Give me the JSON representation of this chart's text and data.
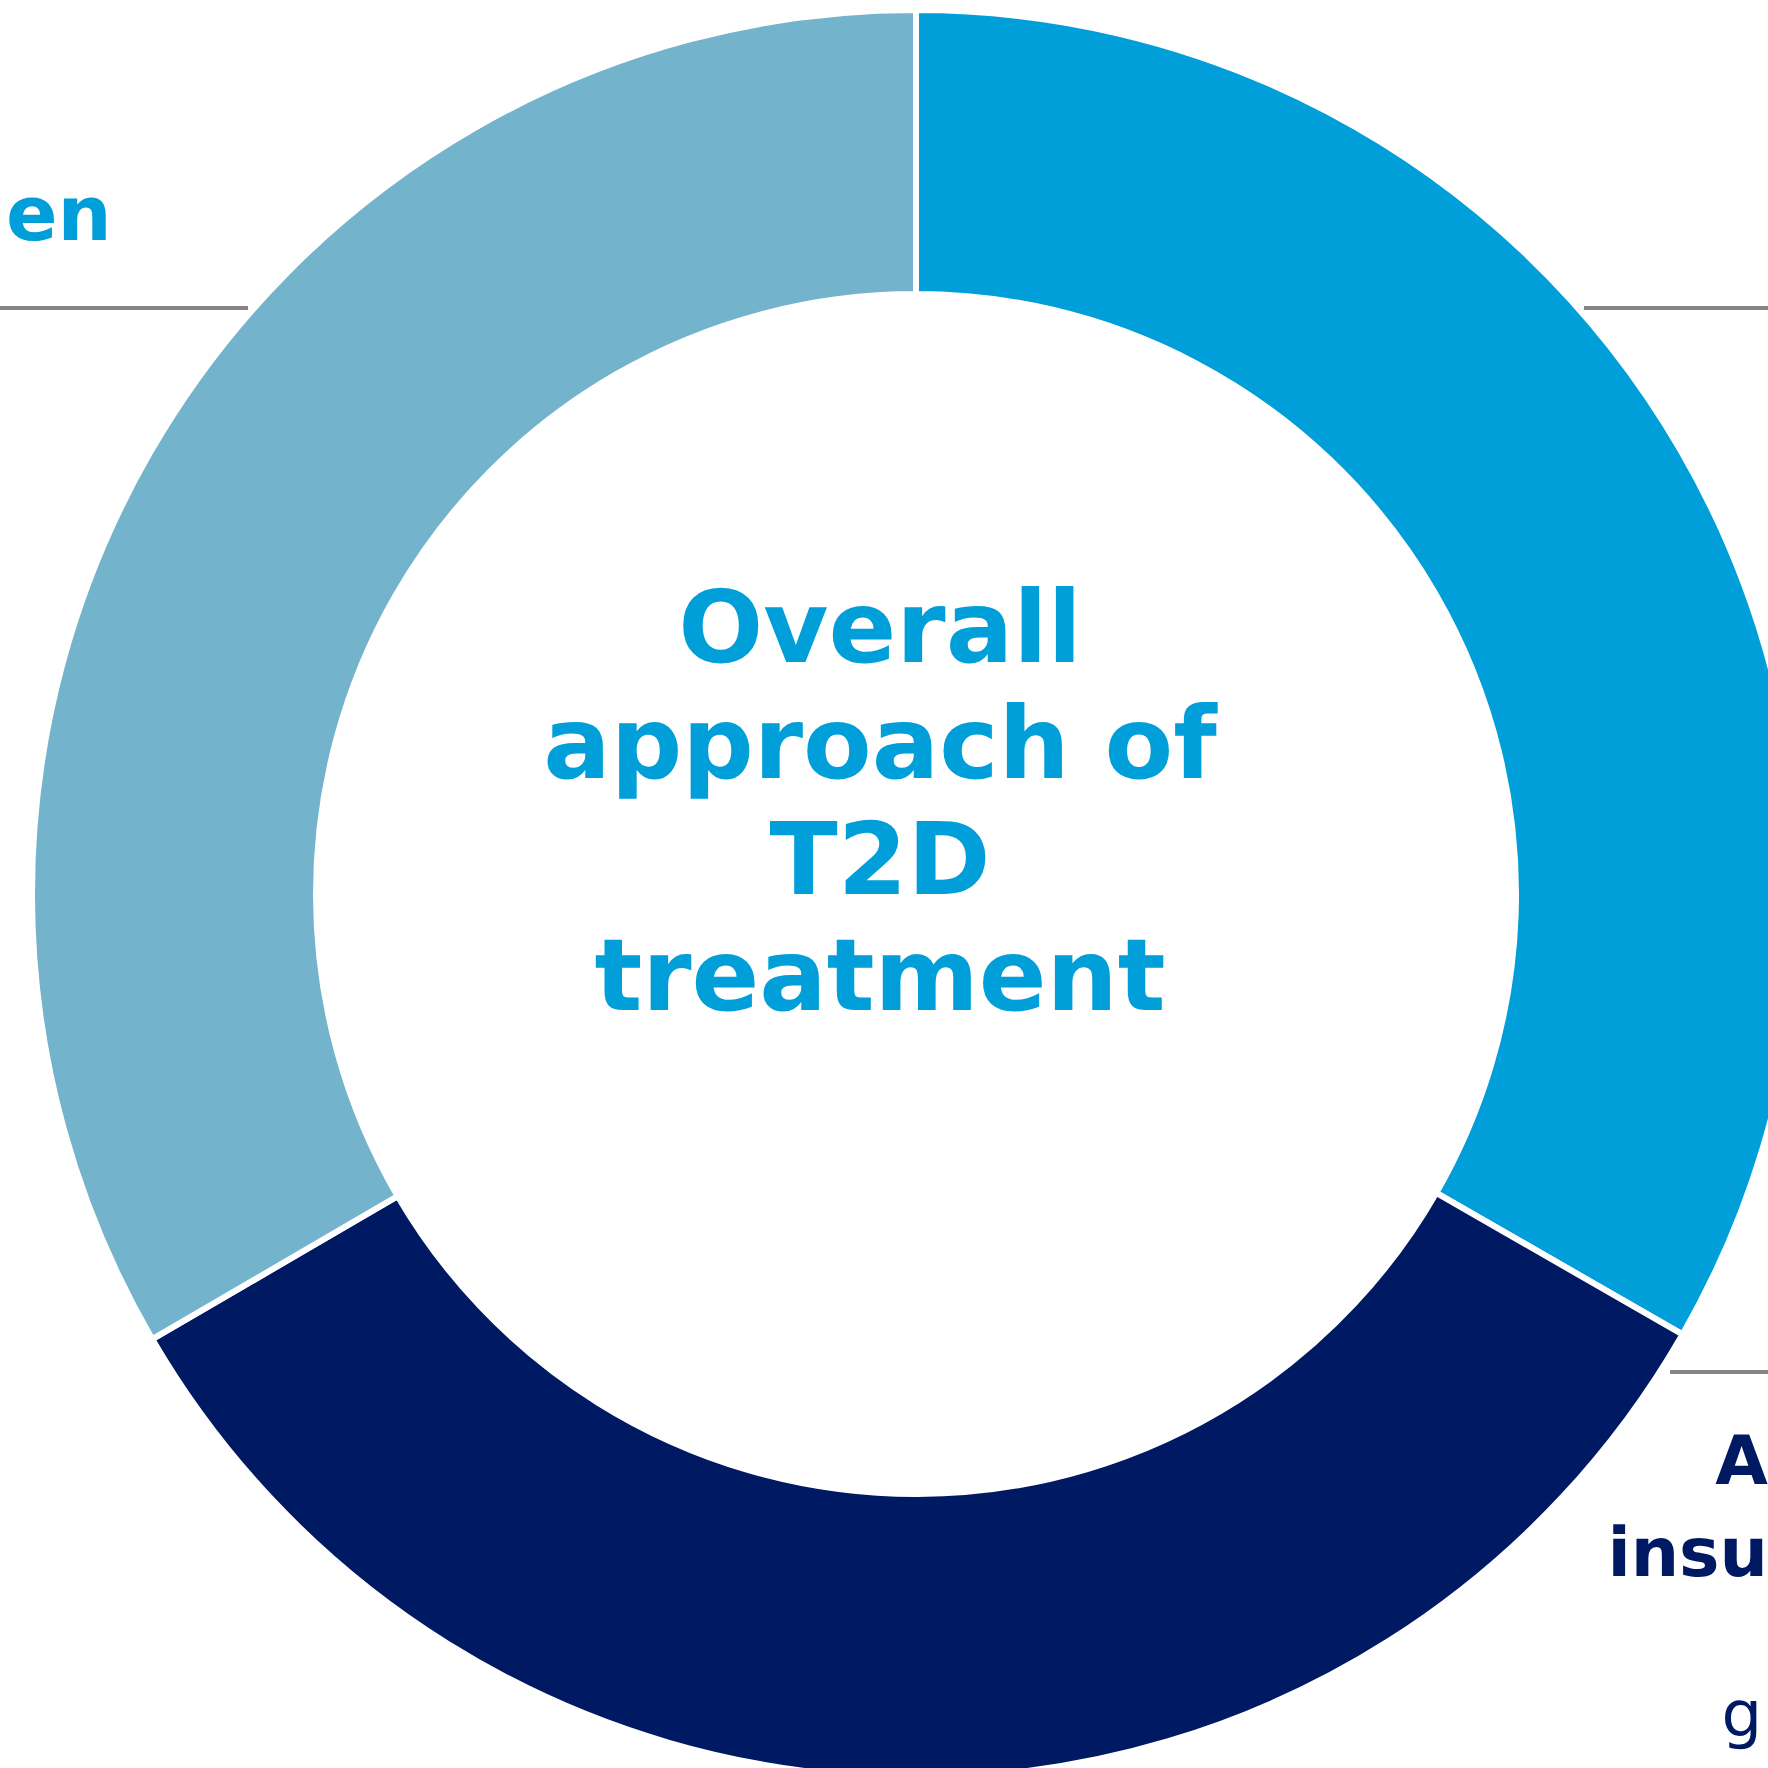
{
  "chart_data": {
    "type": "donut",
    "title": "Overall approach of T2D treatment",
    "categories": [
      null,
      null,
      null
    ],
    "values": [
      33.3,
      33.3,
      33.4
    ],
    "colors": [
      "#009fd9",
      "#001963",
      "#74b3cc"
    ],
    "annotations": [
      "en",
      "A",
      "insu",
      "g"
    ]
  }
}
